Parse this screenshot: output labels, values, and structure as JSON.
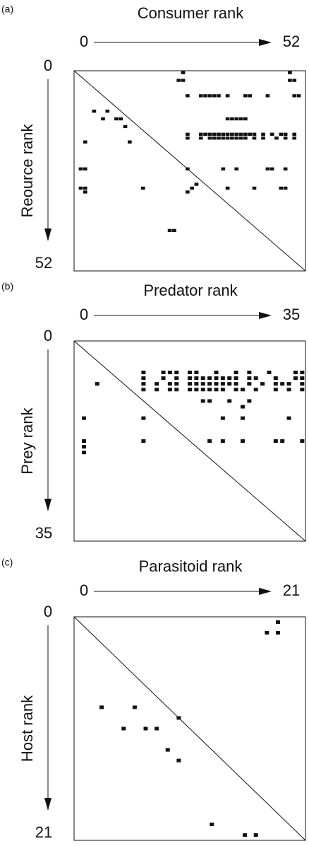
{
  "chart_data": [
    {
      "type": "scatter",
      "label": "(a)",
      "title": "Consumer rank",
      "ylabel": "Reource rank",
      "xlim": [
        0,
        52
      ],
      "ylim": [
        0,
        52
      ],
      "xticks": [
        0,
        52
      ],
      "yticks": [
        0,
        52
      ],
      "x": [
        24,
        48,
        23,
        24,
        48,
        49,
        25,
        28,
        29,
        30,
        31,
        32,
        34,
        38,
        39,
        43,
        49,
        50,
        4,
        7,
        6,
        9,
        10,
        11,
        2,
        12,
        34,
        35,
        36,
        37,
        38,
        25,
        28,
        29,
        30,
        31,
        32,
        33,
        34,
        35,
        36,
        37,
        38,
        39,
        40,
        42,
        44,
        46,
        47,
        49,
        25,
        28,
        30,
        31,
        32,
        33,
        34,
        35,
        36,
        37,
        38,
        40,
        42,
        45,
        47,
        49,
        1,
        2,
        25,
        33,
        36,
        43,
        44,
        47,
        27,
        1,
        2,
        15,
        26,
        34,
        40,
        46,
        47,
        2,
        25,
        21,
        22
      ],
      "y": [
        0,
        0,
        2,
        2,
        2,
        2,
        6,
        6,
        6,
        6,
        6,
        6,
        6,
        6,
        6,
        6,
        6,
        6,
        10,
        10,
        12,
        12,
        12,
        14,
        18,
        18,
        12,
        12,
        12,
        12,
        12,
        16,
        16,
        16,
        16,
        16,
        16,
        16,
        16,
        16,
        16,
        16,
        16,
        16,
        16,
        16,
        16,
        16,
        16,
        16,
        17,
        17,
        17,
        17,
        17,
        17,
        17,
        17,
        17,
        17,
        17,
        17,
        17,
        17,
        17,
        17,
        25,
        25,
        25,
        25,
        25,
        25,
        25,
        25,
        29,
        30,
        30,
        30,
        30,
        30,
        30,
        30,
        30,
        31,
        31,
        41,
        41
      ]
    },
    {
      "type": "scatter",
      "label": "(b)",
      "title": "Predator rank",
      "ylabel": "Prey rank",
      "xlim": [
        0,
        35
      ],
      "ylim": [
        0,
        35
      ],
      "xticks": [
        0,
        35
      ],
      "yticks": [
        0,
        35
      ],
      "x": [
        10,
        13,
        14,
        15,
        17,
        18,
        21,
        24,
        26,
        29,
        33,
        34,
        10,
        13,
        15,
        17,
        18,
        19,
        20,
        21,
        22,
        23,
        24,
        26,
        27,
        30,
        33,
        34,
        3,
        10,
        12,
        14,
        15,
        17,
        18,
        19,
        20,
        21,
        22,
        23,
        24,
        26,
        28,
        30,
        31,
        32,
        34,
        10,
        12,
        14,
        15,
        17,
        18,
        19,
        20,
        21,
        22,
        24,
        25,
        27,
        30,
        32,
        34,
        19,
        20,
        23,
        26,
        25,
        1,
        10,
        22,
        25,
        32,
        1,
        10,
        20,
        22,
        25,
        30,
        31,
        34,
        1,
        1
      ],
      "y": [
        5,
        5,
        5,
        5,
        5,
        5,
        5,
        5,
        5,
        5,
        5,
        5,
        6,
        6,
        6,
        6,
        6,
        6,
        6,
        6,
        6,
        6,
        6,
        6,
        6,
        6,
        6,
        6,
        7,
        7,
        7,
        7,
        7,
        7,
        7,
        7,
        7,
        7,
        7,
        7,
        7,
        7,
        7,
        7,
        7,
        7,
        7,
        8,
        8,
        8,
        8,
        8,
        8,
        8,
        8,
        8,
        8,
        8,
        8,
        8,
        8,
        8,
        8,
        10,
        10,
        10,
        10,
        11,
        13,
        13,
        13,
        13,
        13,
        17,
        17,
        17,
        17,
        17,
        17,
        17,
        17,
        18,
        19
      ]
    },
    {
      "type": "scatter",
      "label": "(c)",
      "title": "Parasitoid  rank",
      "ylabel": "Host rank",
      "xlim": [
        0,
        21
      ],
      "ylim": [
        0,
        21
      ],
      "xticks": [
        0,
        21
      ],
      "yticks": [
        0,
        21
      ],
      "x": [
        18,
        17,
        18,
        2,
        5,
        9,
        4,
        6,
        7,
        8,
        9,
        12,
        15,
        16
      ],
      "y": [
        0,
        1,
        1,
        8,
        8,
        9,
        10,
        10,
        10,
        12,
        13,
        19,
        20,
        20
      ]
    }
  ]
}
